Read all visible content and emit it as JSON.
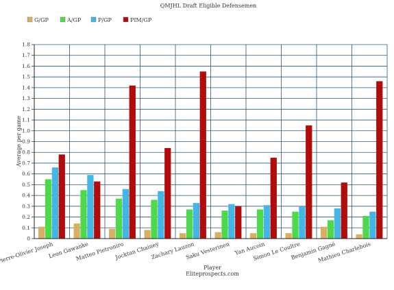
{
  "chart_data": {
    "type": "bar",
    "title": "QMJHL Draft Eligible Defensemen",
    "xlabel": "Player",
    "ylabel": "Average per game",
    "footer": "Eliteprospects.com",
    "ylim": [
      0,
      1.8
    ],
    "ytick_step": 0.1,
    "grid": true,
    "legend_position": "top-left",
    "categories": [
      "Pierre-Olivier Joseph",
      "Leon Gawanke",
      "Matteo Pietroniro",
      "Jocktan Chainey",
      "Zachary Lauzon",
      "Saku Vesterinen",
      "Yan Aucoin",
      "Simon Le Coultre",
      "Benjamin Gagné",
      "Mathieu Charlebois"
    ],
    "series": [
      {
        "name": "G/GP",
        "color": "#d8b064",
        "values": [
          0.11,
          0.14,
          0.09,
          0.08,
          0.05,
          0.06,
          0.05,
          0.05,
          0.11,
          0.04
        ]
      },
      {
        "name": "A/GP",
        "color": "#4ed84c",
        "values": [
          0.55,
          0.45,
          0.37,
          0.36,
          0.27,
          0.26,
          0.27,
          0.25,
          0.17,
          0.21
        ]
      },
      {
        "name": "P/GP",
        "color": "#43b6e6",
        "values": [
          0.66,
          0.59,
          0.46,
          0.44,
          0.33,
          0.32,
          0.31,
          0.3,
          0.28,
          0.25
        ]
      },
      {
        "name": "PIM/GP",
        "color": "#b10c0c",
        "values": [
          0.78,
          0.53,
          1.42,
          0.84,
          1.55,
          0.3,
          0.75,
          1.05,
          0.52,
          1.46
        ]
      }
    ]
  }
}
